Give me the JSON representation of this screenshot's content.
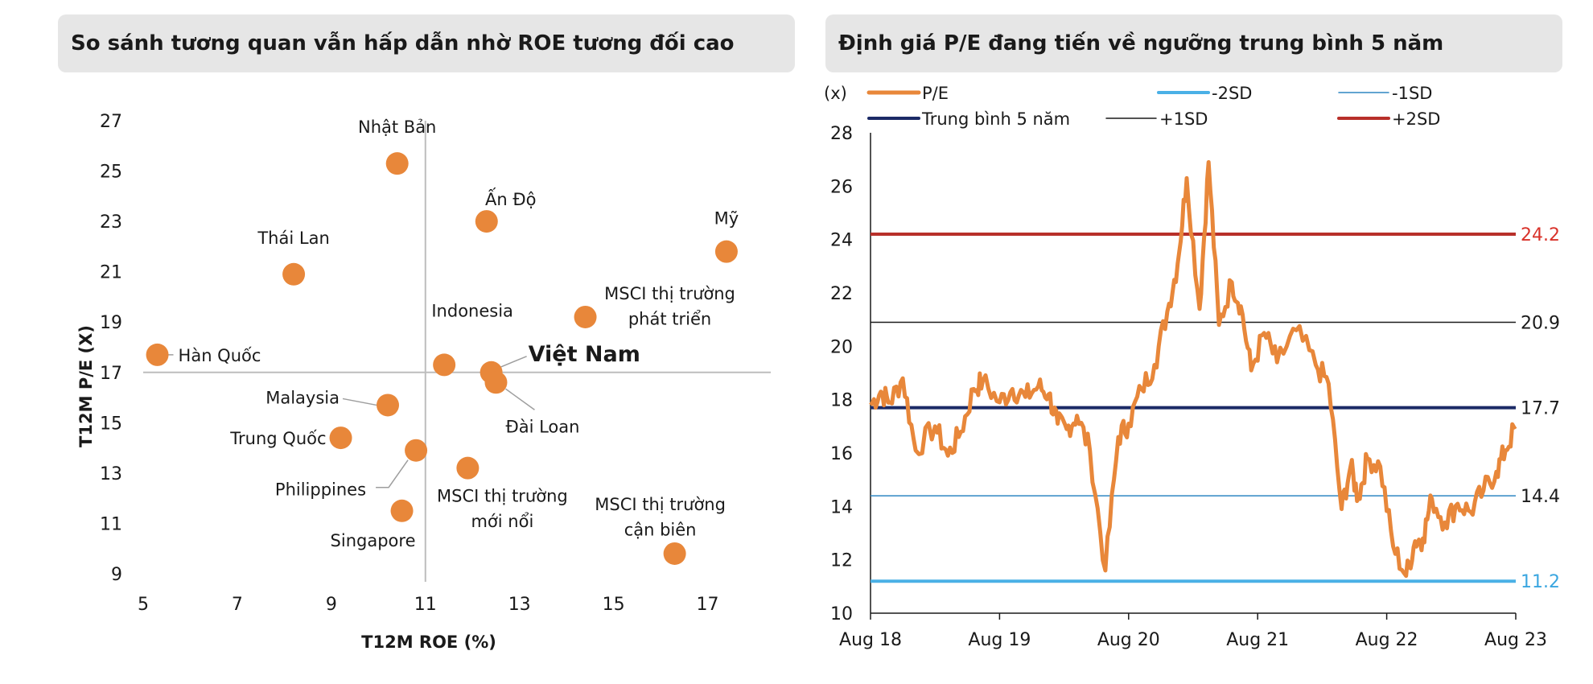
{
  "chart_data": [
    {
      "type": "scatter",
      "title": "So sánh tương quan vẫn hấp dẫn nhờ ROE tương đối cao",
      "xlabel": "T12M ROE (%)",
      "ylabel": "T12M P/E (X)",
      "xlim": [
        5,
        18
      ],
      "ylim": [
        9,
        27
      ],
      "xticks": [
        "5",
        "7",
        "9",
        "11",
        "13",
        "15",
        "17"
      ],
      "yticks": [
        "9",
        "11",
        "13",
        "15",
        "17",
        "19",
        "21",
        "23",
        "25",
        "27"
      ],
      "divider_x": 11,
      "divider_y": 17,
      "marker_color": "#e8873a",
      "points": [
        {
          "label": "Nhật Bản",
          "x": 10.4,
          "y": 25.3
        },
        {
          "label": "Ấn Độ",
          "x": 12.3,
          "y": 23.0
        },
        {
          "label": "Mỹ",
          "x": 17.4,
          "y": 21.8
        },
        {
          "label": "Thái Lan",
          "x": 8.2,
          "y": 20.9
        },
        {
          "label": "MSCI thị trường phát triển",
          "x": 14.4,
          "y": 19.2
        },
        {
          "label": "Hàn Quốc",
          "x": 5.3,
          "y": 17.7
        },
        {
          "label": "Indonesia",
          "x": 11.4,
          "y": 17.3
        },
        {
          "label": "Việt Nam",
          "x": 12.4,
          "y": 17.0
        },
        {
          "label": "Đài Loan",
          "x": 12.5,
          "y": 16.6
        },
        {
          "label": "Malaysia",
          "x": 10.2,
          "y": 15.7
        },
        {
          "label": "Trung Quốc",
          "x": 9.2,
          "y": 14.4
        },
        {
          "label": "Philippines",
          "x": 10.8,
          "y": 13.9
        },
        {
          "label": "MSCI thị trường mới nổi",
          "x": 11.9,
          "y": 13.2
        },
        {
          "label": "Singapore",
          "x": 10.5,
          "y": 11.5
        },
        {
          "label": "MSCI thị trường cận biên",
          "x": 16.3,
          "y": 9.8
        }
      ]
    },
    {
      "type": "line",
      "title": "Định giá P/E đang tiến về ngưỡng trung bình 5 năm",
      "ylabel": "(x)",
      "ylim": [
        10,
        28
      ],
      "yticks": [
        "10",
        "12",
        "14",
        "16",
        "18",
        "20",
        "22",
        "24",
        "26",
        "28"
      ],
      "xticks": [
        "Aug 18",
        "Aug 19",
        "Aug 20",
        "Aug 21",
        "Aug 22",
        "Aug 23"
      ],
      "legend": [
        {
          "name": "P/E",
          "color": "#e8873a",
          "width": 5
        },
        {
          "name": "-2SD",
          "color": "#4ab0e6",
          "width": 4
        },
        {
          "name": "-1SD",
          "color": "#2f86c2",
          "width": 1.5
        },
        {
          "name": "Trung bình 5 năm",
          "color": "#1b2a66",
          "width": 4
        },
        {
          "name": "+1SD",
          "color": "#1a1a1a",
          "width": 1.5
        },
        {
          "name": "+2SD",
          "color": "#b8302a",
          "width": 4
        }
      ],
      "reference_lines": [
        {
          "name": "+2SD",
          "value": 24.2,
          "label": "24.2",
          "color": "#b8302a",
          "label_color": "#d9322a",
          "width": 4
        },
        {
          "name": "+1SD",
          "value": 20.9,
          "label": "20.9",
          "color": "#1a1a1a",
          "label_color": "#1a1a1a",
          "width": 1.5
        },
        {
          "name": "Trung bình 5 năm",
          "value": 17.7,
          "label": "17.7",
          "color": "#1b2a66",
          "label_color": "#1a1a1a",
          "width": 4
        },
        {
          "name": "-1SD",
          "value": 14.4,
          "label": "14.4",
          "color": "#2f86c2",
          "label_color": "#1a1a1a",
          "width": 1.5
        },
        {
          "name": "-2SD",
          "value": 11.2,
          "label": "11.2",
          "color": "#4ab0e6",
          "label_color": "#3aa6e0",
          "width": 4
        }
      ],
      "series": [
        {
          "name": "P/E",
          "color": "#e8873a",
          "t": [
            0,
            0.08,
            0.15,
            0.25,
            0.35,
            0.5,
            0.6,
            0.7,
            0.8,
            0.87,
            1.0,
            1.1,
            1.2,
            1.3,
            1.38,
            1.45,
            1.52,
            1.6,
            1.7,
            1.82,
            1.92,
            2.0,
            2.1,
            2.2,
            2.3,
            2.38,
            2.45,
            2.55,
            2.62,
            2.7,
            2.8,
            2.87,
            2.95,
            3.05,
            3.15,
            3.3,
            3.45,
            3.55,
            3.65,
            3.72,
            3.78,
            3.85,
            3.95,
            4.05,
            4.15,
            4.22,
            4.28,
            4.35,
            4.45,
            4.55,
            4.65,
            4.75,
            4.85,
            4.92,
            5.0
          ],
          "values": [
            17.8,
            18.3,
            17.9,
            18.8,
            16.1,
            17.0,
            15.9,
            16.8,
            18.4,
            18.7,
            17.9,
            18.4,
            18.1,
            18.5,
            18.2,
            17.1,
            16.9,
            17.4,
            16.1,
            11.6,
            16.6,
            17.1,
            18.4,
            19.3,
            21.3,
            23.1,
            26.3,
            21.4,
            26.9,
            20.8,
            22.4,
            21.5,
            19.1,
            20.5,
            19.4,
            20.6,
            19.3,
            18.6,
            13.9,
            15.5,
            14.3,
            15.8,
            15.5,
            12.5,
            11.4,
            12.7,
            12.8,
            14.3,
            13.4,
            14.1,
            13.8,
            14.6,
            15.3,
            16.1,
            17.0
          ]
        }
      ]
    }
  ]
}
